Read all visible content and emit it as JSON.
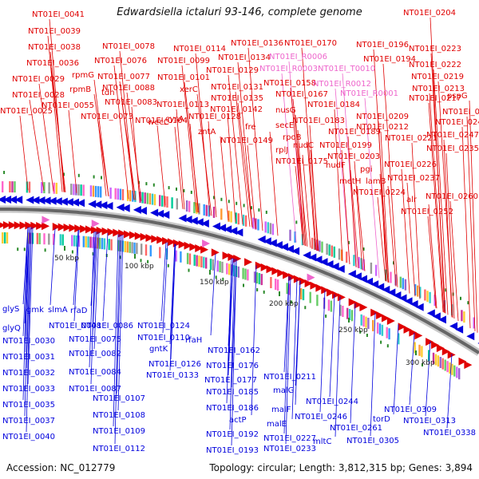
{
  "title": "Edwardsiella ictaluri 93-146, complete genome",
  "footer": {
    "accession": "Accession: NC_012779",
    "topology": "Topology: circular; Length: 3,812,315 bp; Genes: 3,894"
  },
  "scale": [
    "50 kbp",
    "100 kbp",
    "150 kbp",
    "200 kbp",
    "250 kbp",
    "300 kbp"
  ],
  "colors": {
    "top": "#e00000",
    "rna": "#ee66cc",
    "bottom": "#0000dd"
  },
  "labels_top": [
    "NT01EI_0041",
    "NT01EI_0039",
    "NT01EI_0038",
    "NT01EI_0036",
    "NT01EI_0029",
    "NT01EI_0028",
    "NT01EI_0025",
    "rpmG",
    "rpmB",
    "NT01EI_0055",
    "NT01EI_0078",
    "NT01EI_0076",
    "NT01EI_0077",
    "NT01EI_0088",
    "NT01EI_0083",
    "NT01EI_0073",
    "tdh",
    "NT01EI_0114",
    "NT01EI_0099",
    "NT01EI_0101",
    "xerC",
    "NT01EI_0113",
    "NT01EI_0104",
    "cysA",
    "wecC",
    "NT01EI_0136",
    "NT01EI_0134",
    "NT01EI_0129",
    "NT01EI_0131",
    "NT01EI_0135",
    "NT01EI_0142",
    "NT01EI_0128",
    "zntA",
    "fre",
    "NT01EI_0149",
    "NT01EI_0170",
    "NT01EI_R0006",
    "NT01EI_R0003",
    "NT01EI_T0010",
    "NT01EI_0158",
    "NT01EI_0167",
    "nusG",
    "secE",
    "rpoB",
    "rplJ",
    "nudC",
    "NT01EI_0175",
    "NT01EI_R0012",
    "NT01EI_R0001",
    "NT01EI_0184",
    "NT01EI_0183",
    "NT01EI_0189",
    "NT01EI_0199",
    "nudF",
    "NT01EI_0203",
    "metH",
    "pgi",
    "lamB",
    "NT01EI_0224",
    "NT01EI_0204",
    "NT01EI_0196",
    "NT01EI_0194",
    "NT01EI_0223",
    "NT01EI_0222",
    "NT01EI_0219",
    "NT01EI_0213",
    "NT01EI_0217",
    "NT01EI_0209",
    "NT01EI_0212",
    "NT01EI_0221",
    "NT01EI_0226",
    "NT01EI_0237",
    "pspG",
    "NT01EI_0236",
    "NT01EI_0240",
    "NT01EI_0247",
    "NT01EI_0235",
    "alr",
    "NT01EI_0260",
    "NT01EI_0252"
  ],
  "labels_bottom": [
    "glyS",
    "glyQ",
    "gmk",
    "slmA",
    "NT01EI_0030",
    "NT01EI_0031",
    "NT01EI_0032",
    "NT01EI_0033",
    "NT01EI_0035",
    "NT01EI_0037",
    "NT01EI_0040",
    "NT01EI_0048",
    "rfaD",
    "NT01EI_0086",
    "NT01EI_0075",
    "NT01EI_0082",
    "NT01EI_0084",
    "NT01EI_0087",
    "NT01EI_0107",
    "NT01EI_0108",
    "NT01EI_0109",
    "NT01EI_0112",
    "NT01EI_0124",
    "NT01EI_0110",
    "gntK",
    "NT01EI_0126",
    "NT01EI_0133",
    "rfaH",
    "NT01EI_0162",
    "NT01EI_0176",
    "NT01EI_0177",
    "NT01EI_0185",
    "NT01EI_0186",
    "actP",
    "NT01EI_0192",
    "NT01EI_0193",
    "NT01EI_0211",
    "malG",
    "malF",
    "malE",
    "NT01EI_0227",
    "NT01EI_0233",
    "NT01EI_0244",
    "NT01EI_0246",
    "NT01EI_0261",
    "mltC",
    "NT01EI_0305",
    "NT01EI_0309",
    "torD",
    "NT01EI_0313",
    "NT01EI_0338"
  ]
}
